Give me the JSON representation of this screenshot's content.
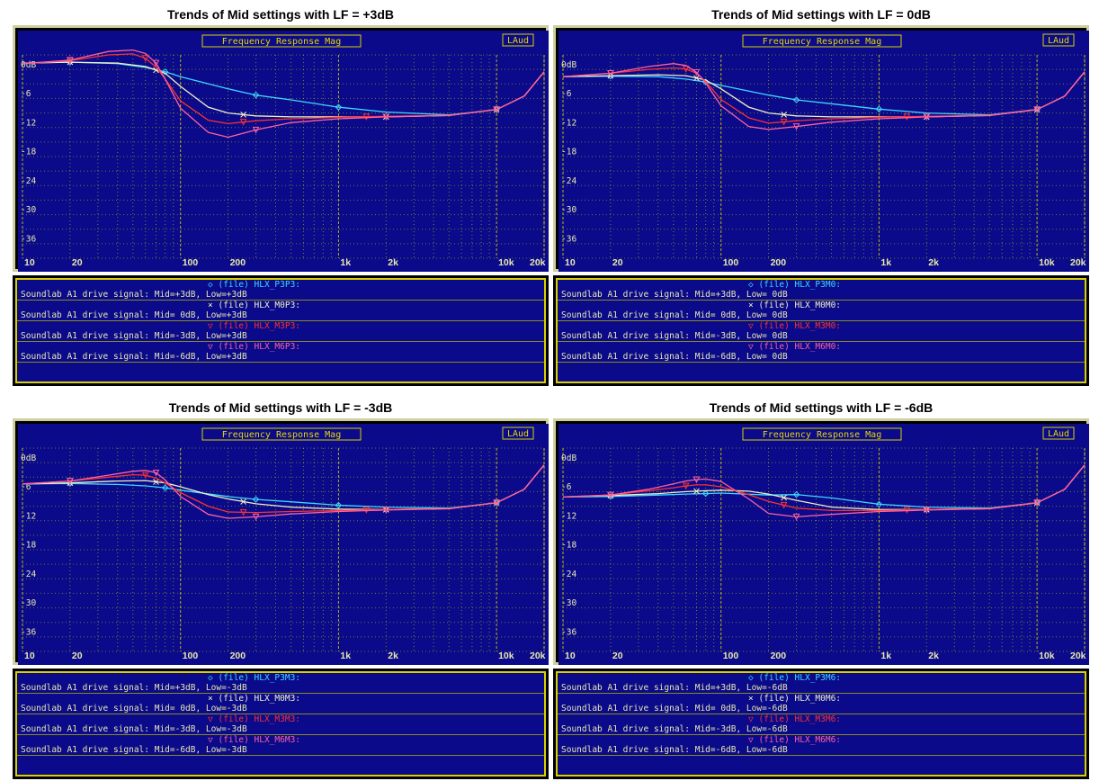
{
  "colors": {
    "plot_bg": "#0a0a8a",
    "grid": "#c8c800",
    "tick_text": "#e8e8b0",
    "series": [
      "#3cd8ff",
      "#f0f0c8",
      "#ff3030",
      "#ff60a0"
    ]
  },
  "common": {
    "frame_title": "Frequency Response Mag",
    "corner_label": "LAud",
    "y_unit_label": "0dB",
    "legend_prefix": "(file)",
    "legend_text_prefix": "Soundlab A1 drive signal:",
    "markers": [
      "◇",
      "×",
      "▽",
      "▽"
    ]
  },
  "panels": [
    {
      "title": "Trends of Mid settings with LF = +3dB",
      "legend": [
        {
          "file": "HLX_P3P3:",
          "desc": "Mid=+3dB, Low=+3dB"
        },
        {
          "file": "HLX_M0P3:",
          "desc": "Mid= 0dB, Low=+3dB"
        },
        {
          "file": "HLX_M3P3:",
          "desc": "Mid=-3dB, Low=+3dB"
        },
        {
          "file": "HLX_M6P3:",
          "desc": "Mid=-6dB, Low=+3dB"
        }
      ]
    },
    {
      "title": "Trends of Mid settings with LF =  0dB",
      "legend": [
        {
          "file": "HLX_P3M0:",
          "desc": "Mid=+3dB, Low= 0dB"
        },
        {
          "file": "HLX_M0M0:",
          "desc": "Mid= 0dB, Low= 0dB"
        },
        {
          "file": "HLX_M3M0:",
          "desc": "Mid=-3dB, Low= 0dB"
        },
        {
          "file": "HLX_M6M0:",
          "desc": "Mid=-6dB, Low= 0dB"
        }
      ]
    },
    {
      "title": "Trends of Mid settings with LF = -3dB",
      "legend": [
        {
          "file": "HLX_P3M3:",
          "desc": "Mid=+3dB, Low=-3dB"
        },
        {
          "file": "HLX_M0M3:",
          "desc": "Mid= 0dB, Low=-3dB"
        },
        {
          "file": "HLX_M3M3:",
          "desc": "Mid=-3dB, Low=-3dB"
        },
        {
          "file": "HLX_M6M3:",
          "desc": "Mid=-6dB, Low=-3dB"
        }
      ]
    },
    {
      "title": "Trends of Mid settings with LF =  -6dB",
      "legend": [
        {
          "file": "HLX_P3M6:",
          "desc": "Mid=+3dB, Low=-6dB"
        },
        {
          "file": "HLX_M0M6:",
          "desc": "Mid= 0dB, Low=-6dB"
        },
        {
          "file": "HLX_M3M6:",
          "desc": "Mid=-3dB, Low=-6dB"
        },
        {
          "file": "HLX_M6M6:",
          "desc": "Mid=-6dB, Low=-6dB"
        }
      ]
    }
  ],
  "chart_data": [
    {
      "type": "line",
      "title": "Trends of Mid settings with LF = +3dB",
      "x_scale": "log",
      "xlim": [
        10,
        20000
      ],
      "ylim": [
        -40,
        2
      ],
      "x_ticks": [
        10,
        20,
        100,
        200,
        1000,
        2000,
        10000,
        20000
      ],
      "x_tick_labels": [
        "10",
        "20",
        "100",
        "200",
        "1k",
        "2k",
        "10k",
        "20k"
      ],
      "y_ticks": [
        0,
        -6,
        -12,
        -18,
        -24,
        -30,
        -36
      ],
      "y_tick_labels": [
        "0dB",
        "-6",
        "-12",
        "-18",
        "-24",
        "-30",
        "-36"
      ],
      "grid": true,
      "series": [
        {
          "name": "HLX_P3P3:",
          "x": [
            10,
            20,
            40,
            60,
            80,
            100,
            200,
            300,
            500,
            1000,
            2000,
            5000,
            10000,
            15000,
            20000
          ],
          "y": [
            0.3,
            0.5,
            0.2,
            -0.6,
            -1.5,
            -2.5,
            -5,
            -6.3,
            -7.3,
            -8.8,
            -9.8,
            -10.4,
            -9.3,
            -6.5,
            -1.5
          ]
        },
        {
          "name": "HLX_M0P3:",
          "x": [
            10,
            20,
            40,
            60,
            80,
            100,
            150,
            200,
            300,
            500,
            1000,
            2000,
            5000,
            10000,
            15000,
            20000
          ],
          "y": [
            0.3,
            0.5,
            0.3,
            -0.4,
            -1.8,
            -4.5,
            -8.8,
            -10,
            -10.6,
            -10.8,
            -10.8,
            -10.8,
            -10.5,
            -9.3,
            -6.5,
            -1.5
          ]
        },
        {
          "name": "HLX_M3P3:",
          "x": [
            10,
            20,
            35,
            50,
            60,
            70,
            80,
            100,
            150,
            200,
            300,
            500,
            1000,
            2000,
            5000,
            10000,
            15000,
            20000
          ],
          "y": [
            0.2,
            0.8,
            2.0,
            2.2,
            1.3,
            -0.5,
            -3,
            -7.5,
            -11.5,
            -12.2,
            -11.6,
            -11.2,
            -10.9,
            -10.7,
            -10.5,
            -9.3,
            -6.5,
            -1.5
          ]
        },
        {
          "name": "HLX_M6P3:",
          "x": [
            10,
            20,
            35,
            50,
            60,
            70,
            80,
            100,
            150,
            200,
            300,
            500,
            1000,
            2000,
            5000,
            10000,
            15000,
            20000
          ],
          "y": [
            0.2,
            0.9,
            2.7,
            3.0,
            2.3,
            0.3,
            -3,
            -9,
            -14,
            -15,
            -13.5,
            -12,
            -11.2,
            -10.8,
            -10.5,
            -9.3,
            -6.5,
            -1.5
          ]
        }
      ]
    },
    {
      "type": "line",
      "title": "Trends of Mid settings with LF =  0dB",
      "x_scale": "log",
      "xlim": [
        10,
        20000
      ],
      "ylim": [
        -40,
        2
      ],
      "x_ticks": [
        10,
        20,
        100,
        200,
        1000,
        2000,
        10000,
        20000
      ],
      "x_tick_labels": [
        "10",
        "20",
        "100",
        "200",
        "1k",
        "2k",
        "10k",
        "20k"
      ],
      "y_ticks": [
        0,
        -6,
        -12,
        -18,
        -24,
        -30,
        -36
      ],
      "y_tick_labels": [
        "0dB",
        "-6",
        "-12",
        "-18",
        "-24",
        "-30",
        "-36"
      ],
      "grid": true,
      "series": [
        {
          "name": "HLX_P3M0:",
          "x": [
            10,
            20,
            40,
            60,
            80,
            100,
            200,
            300,
            500,
            1000,
            2000,
            5000,
            10000,
            15000,
            20000
          ],
          "y": [
            -2.5,
            -2.4,
            -2.5,
            -3,
            -3.6,
            -4.3,
            -6.3,
            -7.3,
            -8.1,
            -9.2,
            -10,
            -10.4,
            -9.3,
            -6.5,
            -1.5
          ]
        },
        {
          "name": "HLX_M0M0:",
          "x": [
            10,
            20,
            40,
            60,
            80,
            100,
            150,
            200,
            300,
            500,
            1000,
            2000,
            5000,
            10000,
            15000,
            20000
          ],
          "y": [
            -2.5,
            -2.3,
            -2.1,
            -2.3,
            -3.2,
            -5,
            -8.8,
            -10,
            -10.6,
            -10.8,
            -10.8,
            -10.8,
            -10.5,
            -9.3,
            -6.5,
            -1.5
          ]
        },
        {
          "name": "HLX_M3M0:",
          "x": [
            10,
            20,
            35,
            50,
            60,
            70,
            80,
            100,
            150,
            200,
            300,
            500,
            1000,
            2000,
            5000,
            10000,
            15000,
            20000
          ],
          "y": [
            -2.5,
            -1.8,
            -1,
            -0.7,
            -0.9,
            -1.8,
            -3.5,
            -7.2,
            -11,
            -12.1,
            -11.6,
            -11.2,
            -10.9,
            -10.7,
            -10.5,
            -9.3,
            -6.5,
            -1.5
          ]
        },
        {
          "name": "HLX_M6M0:",
          "x": [
            10,
            20,
            35,
            50,
            60,
            70,
            80,
            100,
            150,
            200,
            300,
            500,
            1000,
            2000,
            5000,
            10000,
            15000,
            20000
          ],
          "y": [
            -2.5,
            -1.8,
            -0.4,
            0.2,
            -0.2,
            -1.6,
            -3.8,
            -8.5,
            -12.8,
            -13.4,
            -12.8,
            -11.9,
            -11.2,
            -10.8,
            -10.5,
            -9.3,
            -6.5,
            -1.5
          ]
        }
      ]
    },
    {
      "type": "line",
      "title": "Trends of Mid settings with LF = -3dB",
      "x_scale": "log",
      "xlim": [
        10,
        20000
      ],
      "ylim": [
        -40,
        2
      ],
      "x_ticks": [
        10,
        20,
        100,
        200,
        1000,
        2000,
        10000,
        20000
      ],
      "x_tick_labels": [
        "10",
        "20",
        "100",
        "200",
        "1k",
        "2k",
        "10k",
        "20k"
      ],
      "y_ticks": [
        0,
        -6,
        -12,
        -18,
        -24,
        -30,
        -36
      ],
      "y_tick_labels": [
        "0dB",
        "-6",
        "-12",
        "-18",
        "-24",
        "-30",
        "-36"
      ],
      "grid": true,
      "series": [
        {
          "name": "HLX_P3M3:",
          "x": [
            10,
            20,
            40,
            60,
            80,
            100,
            200,
            300,
            500,
            1000,
            2000,
            5000,
            10000,
            15000,
            20000
          ],
          "y": [
            -5.4,
            -5.3,
            -5.5,
            -5.8,
            -6.2,
            -6.7,
            -8,
            -8.6,
            -9.1,
            -9.8,
            -10.2,
            -10.4,
            -9.3,
            -6.5,
            -1.5
          ]
        },
        {
          "name": "HLX_M0M3:",
          "x": [
            10,
            20,
            40,
            60,
            80,
            100,
            150,
            200,
            300,
            500,
            1000,
            2000,
            5000,
            10000,
            15000,
            20000
          ],
          "y": [
            -5.4,
            -5.2,
            -4.8,
            -4.7,
            -5.2,
            -6,
            -7.6,
            -8.5,
            -9.5,
            -10.2,
            -10.6,
            -10.7,
            -10.5,
            -9.3,
            -6.5,
            -1.5
          ]
        },
        {
          "name": "HLX_M3M3:",
          "x": [
            10,
            20,
            35,
            50,
            60,
            70,
            80,
            100,
            150,
            200,
            300,
            500,
            1000,
            2000,
            5000,
            10000,
            15000,
            20000
          ],
          "y": [
            -5.4,
            -4.8,
            -4,
            -3.5,
            -3.6,
            -4.2,
            -5.2,
            -7.2,
            -10,
            -11.2,
            -11.3,
            -11.1,
            -10.9,
            -10.7,
            -10.5,
            -9.3,
            -6.5,
            -1.5
          ]
        },
        {
          "name": "HLX_M6M3:",
          "x": [
            10,
            20,
            35,
            50,
            60,
            70,
            80,
            100,
            150,
            200,
            300,
            500,
            1000,
            2000,
            5000,
            10000,
            15000,
            20000
          ],
          "y": [
            -5.4,
            -4.8,
            -3.6,
            -2.8,
            -2.6,
            -3.1,
            -4.6,
            -8,
            -11.7,
            -12.5,
            -12.2,
            -11.6,
            -11.1,
            -10.8,
            -10.5,
            -9.3,
            -6.5,
            -1.5
          ]
        }
      ]
    },
    {
      "type": "line",
      "title": "Trends of Mid settings with LF =  -6dB",
      "x_scale": "log",
      "xlim": [
        10,
        20000
      ],
      "ylim": [
        -40,
        2
      ],
      "x_ticks": [
        10,
        20,
        100,
        200,
        1000,
        2000,
        10000,
        20000
      ],
      "x_tick_labels": [
        "10",
        "20",
        "100",
        "200",
        "1k",
        "2k",
        "10k",
        "20k"
      ],
      "y_ticks": [
        0,
        -6,
        -12,
        -18,
        -24,
        -30,
        -36
      ],
      "y_tick_labels": [
        "0dB",
        "-6",
        "-12",
        "-18",
        "-24",
        "-30",
        "-36"
      ],
      "grid": true,
      "series": [
        {
          "name": "HLX_P3M6:",
          "x": [
            10,
            20,
            40,
            60,
            80,
            100,
            200,
            300,
            500,
            1000,
            2000,
            5000,
            10000,
            15000,
            20000
          ],
          "y": [
            -8.1,
            -8,
            -7.7,
            -7.5,
            -7.4,
            -7.3,
            -7.7,
            -7.6,
            -8.3,
            -9.6,
            -10.2,
            -10.4,
            -9.3,
            -6.5,
            -1.5
          ]
        },
        {
          "name": "HLX_M0M6:",
          "x": [
            10,
            20,
            40,
            60,
            80,
            100,
            150,
            200,
            300,
            500,
            1000,
            2000,
            5000,
            10000,
            15000,
            20000
          ],
          "y": [
            -8.1,
            -7.8,
            -7.4,
            -7,
            -6.8,
            -6.7,
            -6.9,
            -7.5,
            -8.8,
            -10.2,
            -10.7,
            -10.7,
            -10.5,
            -9.3,
            -6.5,
            -1.5
          ]
        },
        {
          "name": "HLX_M3M6:",
          "x": [
            10,
            20,
            35,
            50,
            60,
            70,
            80,
            100,
            150,
            200,
            300,
            500,
            1000,
            2000,
            5000,
            10000,
            15000,
            20000
          ],
          "y": [
            -8.1,
            -7.7,
            -6.8,
            -6.2,
            -5.8,
            -5.6,
            -5.6,
            -6,
            -7.6,
            -9,
            -10.4,
            -10.9,
            -10.9,
            -10.7,
            -10.5,
            -9.3,
            -6.5,
            -1.5
          ]
        },
        {
          "name": "HLX_M6M6:",
          "x": [
            10,
            20,
            35,
            50,
            60,
            70,
            80,
            100,
            150,
            200,
            300,
            500,
            1000,
            2000,
            5000,
            10000,
            15000,
            20000
          ],
          "y": [
            -8.1,
            -7.7,
            -6.5,
            -5.4,
            -4.8,
            -4.5,
            -4.4,
            -4.9,
            -8.5,
            -11.5,
            -12.2,
            -11.7,
            -11.1,
            -10.8,
            -10.5,
            -9.3,
            -6.5,
            -1.5
          ]
        }
      ]
    }
  ]
}
